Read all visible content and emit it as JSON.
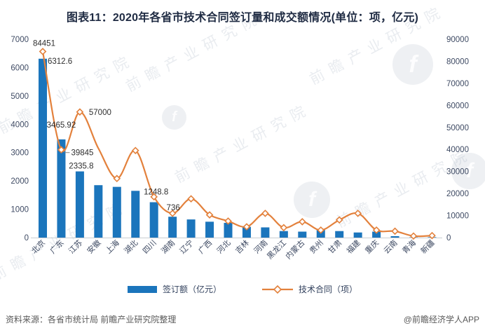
{
  "title": "图表11：2020年各省市技术合同签订量和成交额情况(单位：项，亿元)",
  "chart_data": {
    "type": "combo-bar-line",
    "categories": [
      "北京",
      "广东",
      "江苏",
      "安徽",
      "上海",
      "湖北",
      "四川",
      "湖南",
      "辽宁",
      "广西",
      "河北",
      "吉林",
      "河南",
      "黑龙江",
      "内蒙古",
      "贵州",
      "甘肃",
      "福建",
      "重庆",
      "云南",
      "青海",
      "新疆"
    ],
    "series": [
      {
        "name": "签订额（亿元）",
        "type": "bar",
        "axis": "left",
        "color": "#1B75BC",
        "values": [
          6312.6,
          3465.92,
          2335.8,
          1850,
          1790,
          1650,
          1248.8,
          736,
          640,
          560,
          520,
          380,
          360,
          230,
          210,
          300,
          230,
          180,
          210,
          50,
          10,
          15
        ]
      },
      {
        "name": "技术合同（项）",
        "type": "line",
        "axis": "right",
        "color": "#E3813C",
        "values": [
          84451,
          39845,
          57000,
          40500,
          26800,
          39500,
          18500,
          11000,
          17600,
          10300,
          7500,
          4900,
          11000,
          4500,
          7200,
          3400,
          8000,
          11000,
          3400,
          2900,
          700,
          900
        ]
      }
    ],
    "left_axis": {
      "min": 0,
      "max": 7000,
      "step": 1000
    },
    "right_axis": {
      "min": 0,
      "max": 90000,
      "step": 10000
    },
    "shown_labels": {
      "bar": [
        {
          "index": 0,
          "text": "6312.6"
        },
        {
          "index": 1,
          "text": "3465.92"
        },
        {
          "index": 2,
          "text": "2335.8"
        },
        {
          "index": 6,
          "text": "1248.8"
        },
        {
          "index": 7,
          "text": "736"
        }
      ],
      "line": [
        {
          "index": 0,
          "text": "84451"
        },
        {
          "index": 1,
          "text": "39845"
        },
        {
          "index": 2,
          "text": "57000"
        }
      ]
    },
    "legend_position": "bottom",
    "grid": false
  },
  "footer": {
    "source": "资料来源：各省市统计局 前瞻产业研究院整理",
    "credit": "@前瞻经济学人APP"
  },
  "watermark": {
    "text": "前瞻产业研究院",
    "logo_glyph": "f"
  }
}
